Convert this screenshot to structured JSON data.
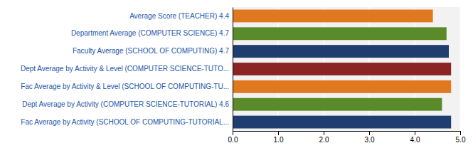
{
  "chart_data": {
    "type": "bar",
    "orientation": "horizontal",
    "categories": [
      "Fac Average by Activity (SCHOOL OF COMPUTING-TUTORIAL...",
      "Dept Average by Activity (COMPUTER SCIENCE-TUTORIAL)  4.6",
      "Fac Average by Activity & Level (SCHOOL OF COMPUTING-TU...",
      "Dept Average by Activity & Level (COMPUTER SCIENCE-TUTO...",
      "Faculty Average (SCHOOL OF COMPUTING)  4.7",
      "Department Average (COMPUTER SCIENCE)  4.7",
      "Average Score (TEACHER)  4.4"
    ],
    "values": [
      4.8,
      4.6,
      4.8,
      4.8,
      4.75,
      4.7,
      4.4
    ],
    "colors": [
      "#1f3d6e",
      "#5a8a2a",
      "#e07820",
      "#8b2525",
      "#1f3d6e",
      "#5a8a2a",
      "#e07820"
    ],
    "xlim": [
      0,
      5.0
    ],
    "xticks": [
      {
        "value": 0.0,
        "label": "0.0"
      },
      {
        "value": 1.0,
        "label": "1.0"
      },
      {
        "value": 2.0,
        "label": "2.0"
      },
      {
        "value": 3.0,
        "label": "3.0"
      },
      {
        "value": 4.0,
        "label": "4.0"
      },
      {
        "value": 5.0,
        "label": "5.0"
      }
    ],
    "grid": true
  }
}
